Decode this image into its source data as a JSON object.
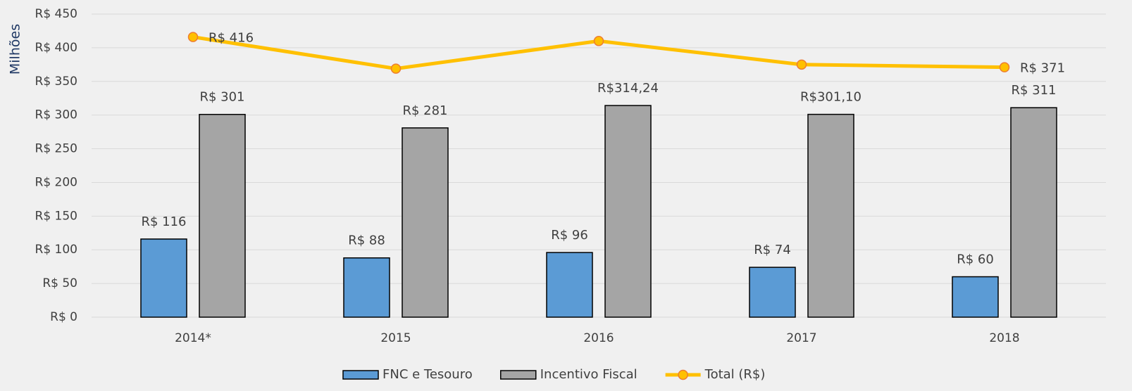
{
  "chart_data": {
    "type": "bar",
    "y_label": "Milhões",
    "categories": [
      "2014*",
      "2015",
      "2016",
      "2017",
      "2018"
    ],
    "series": [
      {
        "name": "FNC e Tesouro",
        "color": "#5b9bd5",
        "values": [
          116,
          88,
          96,
          74,
          60
        ],
        "value_labels": [
          "R$ 116",
          "R$ 88",
          "R$ 96",
          "R$ 74",
          "R$ 60"
        ]
      },
      {
        "name": "Incentivo Fiscal",
        "color": "#a5a5a5",
        "values": [
          301,
          281,
          314.24,
          301.1,
          311
        ],
        "value_labels": [
          "R$ 301",
          "R$ 281",
          "R$314,24",
          "R$301,10",
          "R$ 311"
        ]
      },
      {
        "name": "Total (R$)",
        "type": "line",
        "color": "#ffc000",
        "values": [
          416,
          369,
          410,
          375,
          371
        ],
        "value_labels": [
          "R$ 416",
          null,
          null,
          null,
          "R$ 371"
        ]
      }
    ],
    "ylim": [
      0,
      450
    ],
    "yticks": [
      {
        "value": 0,
        "label": "R$ 0"
      },
      {
        "value": 50,
        "label": "R$ 50"
      },
      {
        "value": 100,
        "label": "R$ 100"
      },
      {
        "value": 150,
        "label": "R$ 150"
      },
      {
        "value": 200,
        "label": "R$ 200"
      },
      {
        "value": 250,
        "label": "R$ 250"
      },
      {
        "value": 300,
        "label": "R$ 300"
      },
      {
        "value": 350,
        "label": "R$ 350"
      },
      {
        "value": 400,
        "label": "R$ 400"
      },
      {
        "value": 450,
        "label": "R$ 450"
      }
    ],
    "grid": true,
    "legend": "bottom"
  }
}
